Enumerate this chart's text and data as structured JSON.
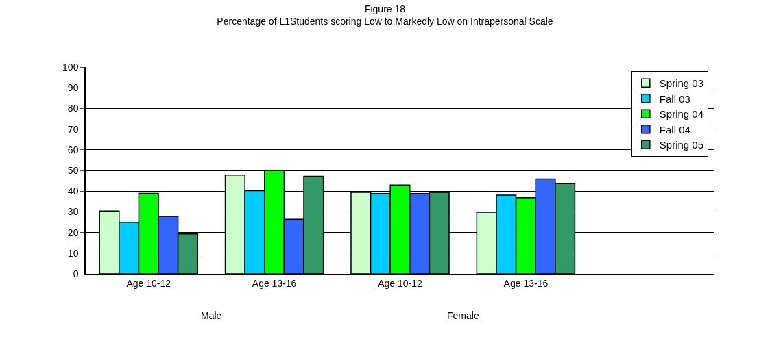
{
  "chart_data": {
    "type": "bar",
    "title": "Figure 18",
    "subtitle": "Percentage of L1Students scoring Low to Markedly Low on Intrapersonal Scale",
    "categories": [
      "Age 10-12",
      "Age 13-16",
      "Age 10-12",
      "Age 13-16",
      null
    ],
    "series": [
      {
        "name": "Spring 03",
        "color": "#ccffcc",
        "values": [
          30.4,
          47.8,
          39.4,
          29.8,
          null
        ]
      },
      {
        "name": "Fall 03",
        "color": "#00ccff",
        "values": [
          24.9,
          40.2,
          38.8,
          38.1,
          null
        ]
      },
      {
        "name": "Spring 04",
        "color": "#00ff00",
        "values": [
          38.9,
          49.9,
          43.0,
          36.8,
          null
        ]
      },
      {
        "name": "Fall 04",
        "color": "#3366ff",
        "values": [
          27.8,
          26.4,
          38.8,
          45.9,
          null
        ]
      },
      {
        "name": "Spring 05",
        "color": "#339966",
        "values": [
          19.3,
          47.2,
          39.4,
          43.6,
          null
        ]
      }
    ],
    "annotations": [
      "Male",
      "Female"
    ],
    "ylim": [
      0,
      100
    ],
    "yticks": [
      0,
      10,
      20,
      30,
      40,
      50,
      60,
      70,
      80,
      90,
      100
    ],
    "grid": "y",
    "legend": "top right"
  }
}
